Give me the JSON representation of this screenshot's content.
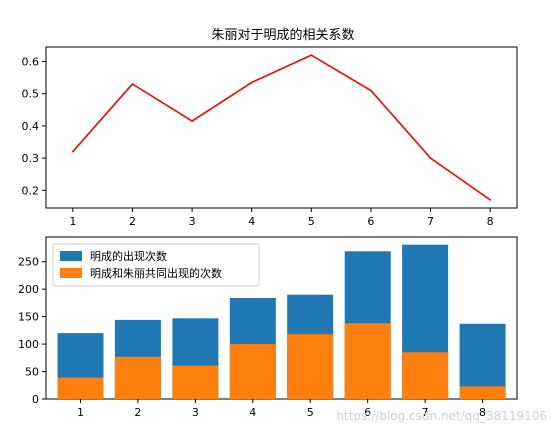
{
  "chart_data": [
    {
      "type": "line",
      "title": "朱丽对于明成的相关系数",
      "x": [
        1,
        2,
        3,
        4,
        5,
        6,
        7,
        8
      ],
      "series": [
        {
          "values": [
            0.32,
            0.53,
            0.415,
            0.535,
            0.62,
            0.51,
            0.3,
            0.17
          ],
          "color": "#ff0000"
        }
      ],
      "xlim": [
        0.55,
        8.45
      ],
      "ylim": [
        0.145,
        0.645
      ],
      "xticks": [
        1,
        2,
        3,
        4,
        5,
        6,
        7,
        8
      ],
      "yticks": [
        0.2,
        0.3,
        0.4,
        0.5,
        0.6
      ],
      "ytick_labels": [
        "0.2",
        "0.3",
        "0.4",
        "0.5",
        "0.6"
      ],
      "grid": false
    },
    {
      "type": "bar",
      "categories": [
        "1",
        "2",
        "3",
        "4",
        "5",
        "6",
        "7",
        "8"
      ],
      "series": [
        {
          "name": "明成的出现次数",
          "values": [
            120,
            144,
            147,
            184,
            190,
            269,
            281,
            137
          ],
          "color": "#1f77b4"
        },
        {
          "name": "明成和朱丽共同出现的次数",
          "values": [
            39,
            77,
            61,
            100,
            118,
            138,
            85,
            23
          ],
          "color": "#ff7f0e"
        }
      ],
      "xlim": [
        0.4,
        8.6
      ],
      "ylim": [
        0,
        295
      ],
      "yticks": [
        0,
        50,
        100,
        150,
        200,
        250
      ],
      "legend": "top-left",
      "grid": false
    }
  ],
  "watermark": "https://blog.csdn.net/qq_38119106"
}
